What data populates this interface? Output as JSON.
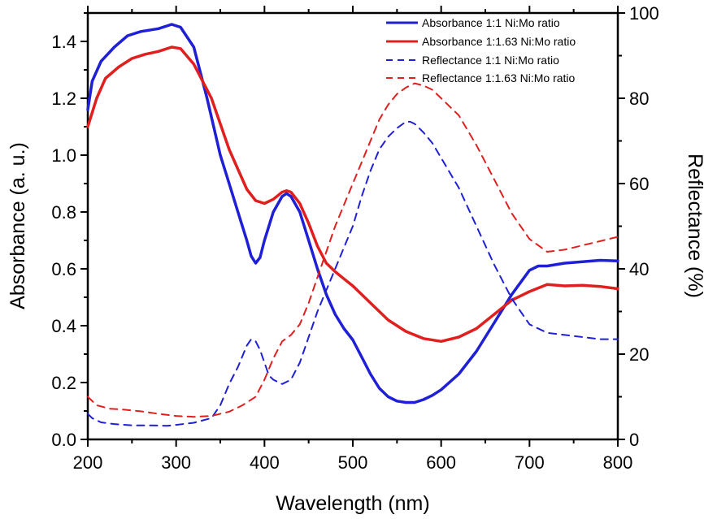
{
  "chart_data": {
    "type": "line",
    "xlabel": "Wavelength (nm)",
    "ylabel": "Absorbance (a. u.)",
    "y2label": "Reflectance (%)",
    "xlim": [
      200,
      800
    ],
    "ylim": [
      0.0,
      1.5
    ],
    "y2lim": [
      0,
      100
    ],
    "xticks": [
      "200",
      "300",
      "400",
      "500",
      "600",
      "700",
      "800"
    ],
    "yticks": [
      "0.0",
      "0.2",
      "0.4",
      "0.6",
      "0.8",
      "1.0",
      "1.2",
      "1.4"
    ],
    "y2ticks": [
      "0",
      "20",
      "40",
      "60",
      "80",
      "100"
    ],
    "legend_position": "top-right",
    "series": [
      {
        "name": "Absorbance 1:1 Ni:Mo ratio",
        "axis": "left",
        "style": "solid",
        "color": "#1f1fd6",
        "x": [
          200,
          205,
          215,
          230,
          245,
          260,
          280,
          295,
          305,
          320,
          335,
          350,
          360,
          370,
          380,
          385,
          390,
          395,
          400,
          410,
          420,
          425,
          430,
          440,
          450,
          460,
          470,
          480,
          490,
          500,
          510,
          520,
          530,
          540,
          550,
          560,
          565,
          570,
          580,
          590,
          600,
          620,
          640,
          660,
          680,
          700,
          710,
          720,
          740,
          760,
          780,
          800
        ],
        "values": [
          1.16,
          1.26,
          1.33,
          1.38,
          1.42,
          1.435,
          1.445,
          1.46,
          1.45,
          1.38,
          1.2,
          1.0,
          0.9,
          0.8,
          0.7,
          0.645,
          0.62,
          0.64,
          0.7,
          0.8,
          0.855,
          0.865,
          0.855,
          0.8,
          0.7,
          0.6,
          0.51,
          0.44,
          0.39,
          0.35,
          0.29,
          0.23,
          0.18,
          0.15,
          0.135,
          0.13,
          0.13,
          0.13,
          0.14,
          0.155,
          0.175,
          0.23,
          0.31,
          0.41,
          0.51,
          0.595,
          0.61,
          0.61,
          0.62,
          0.625,
          0.63,
          0.628
        ]
      },
      {
        "name": "Absorbance 1:1.63 Ni:Mo ratio",
        "axis": "left",
        "style": "solid",
        "color": "#e01f1f",
        "x": [
          200,
          210,
          220,
          235,
          250,
          265,
          280,
          295,
          305,
          320,
          340,
          360,
          380,
          390,
          400,
          410,
          420,
          425,
          430,
          440,
          450,
          460,
          470,
          480,
          490,
          500,
          510,
          520,
          540,
          560,
          580,
          600,
          620,
          640,
          660,
          680,
          700,
          720,
          740,
          760,
          780,
          800
        ],
        "values": [
          1.1,
          1.2,
          1.27,
          1.31,
          1.34,
          1.355,
          1.365,
          1.38,
          1.375,
          1.32,
          1.2,
          1.02,
          0.88,
          0.84,
          0.83,
          0.845,
          0.87,
          0.875,
          0.87,
          0.83,
          0.76,
          0.68,
          0.62,
          0.59,
          0.565,
          0.54,
          0.51,
          0.48,
          0.42,
          0.38,
          0.355,
          0.345,
          0.36,
          0.39,
          0.44,
          0.49,
          0.52,
          0.545,
          0.54,
          0.542,
          0.538,
          0.53
        ]
      },
      {
        "name": "Reflectance 1:1 Ni:Mo ratio",
        "axis": "right",
        "style": "dashed",
        "color": "#1f1fd6",
        "x": [
          200,
          205,
          215,
          230,
          250,
          270,
          290,
          300,
          320,
          340,
          350,
          360,
          370,
          380,
          385,
          390,
          395,
          400,
          405,
          410,
          420,
          430,
          440,
          450,
          460,
          470,
          480,
          490,
          500,
          510,
          520,
          530,
          540,
          550,
          560,
          565,
          570,
          580,
          590,
          600,
          620,
          640,
          660,
          680,
          700,
          720,
          740,
          760,
          780,
          800
        ],
        "values": [
          6,
          5,
          4,
          3.6,
          3.3,
          3.3,
          3.2,
          3.4,
          3.9,
          5,
          8,
          13,
          17,
          22,
          23.5,
          23,
          21,
          18,
          15,
          14,
          13,
          14,
          18,
          24,
          30,
          35,
          40,
          45,
          50,
          57,
          63,
          68,
          71,
          73,
          74.5,
          74.5,
          74,
          72,
          69.5,
          66,
          59,
          50,
          41,
          33,
          27,
          25,
          24.5,
          24,
          23.5,
          23.5
        ]
      },
      {
        "name": "Reflectance 1:1.63 Ni:Mo ratio",
        "axis": "right",
        "style": "dashed",
        "color": "#e01f1f",
        "x": [
          200,
          210,
          225,
          240,
          260,
          280,
          300,
          320,
          340,
          360,
          375,
          390,
          400,
          410,
          420,
          430,
          440,
          450,
          460,
          470,
          480,
          490,
          500,
          510,
          520,
          530,
          540,
          550,
          560,
          570,
          580,
          590,
          600,
          620,
          640,
          660,
          680,
          700,
          720,
          740,
          760,
          780,
          800
        ],
        "values": [
          10,
          8,
          7.2,
          7,
          6.6,
          6,
          5.5,
          5.3,
          5.5,
          6.5,
          8,
          10,
          14,
          19,
          23,
          24.5,
          27,
          32,
          38,
          44,
          50,
          55,
          60,
          65,
          70,
          75,
          78.5,
          81,
          82.5,
          83.5,
          83,
          82,
          80,
          76,
          69,
          61,
          53,
          47,
          44,
          44.5,
          45.5,
          46.5,
          47.5
        ]
      }
    ]
  }
}
